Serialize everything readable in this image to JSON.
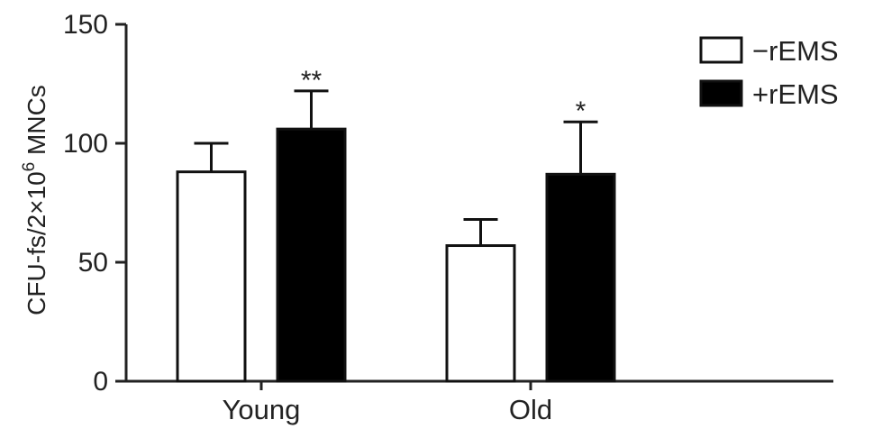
{
  "chart_data": {
    "type": "bar",
    "title": "",
    "xlabel": "",
    "ylabel": {
      "prefix": "CFU-fs/2×10",
      "superscript": "6",
      "suffix": " MNCs"
    },
    "ylim": [
      0,
      150
    ],
    "yticks": [
      "0",
      "50",
      "100",
      "150"
    ],
    "categories": [
      "Young",
      "Old"
    ],
    "series": [
      {
        "name": "−rEMS",
        "fill": "#ffffff",
        "values": [
          88,
          57
        ],
        "errors": [
          12,
          11
        ]
      },
      {
        "name": "+rEMS",
        "fill": "#000000",
        "values": [
          106,
          87
        ],
        "errors": [
          16,
          22
        ]
      }
    ],
    "annotations": [
      {
        "category_index": 0,
        "series_index": 1,
        "text": "**"
      },
      {
        "category_index": 1,
        "series_index": 1,
        "text": "*"
      }
    ],
    "legend_position": "top-right",
    "grid": false
  }
}
